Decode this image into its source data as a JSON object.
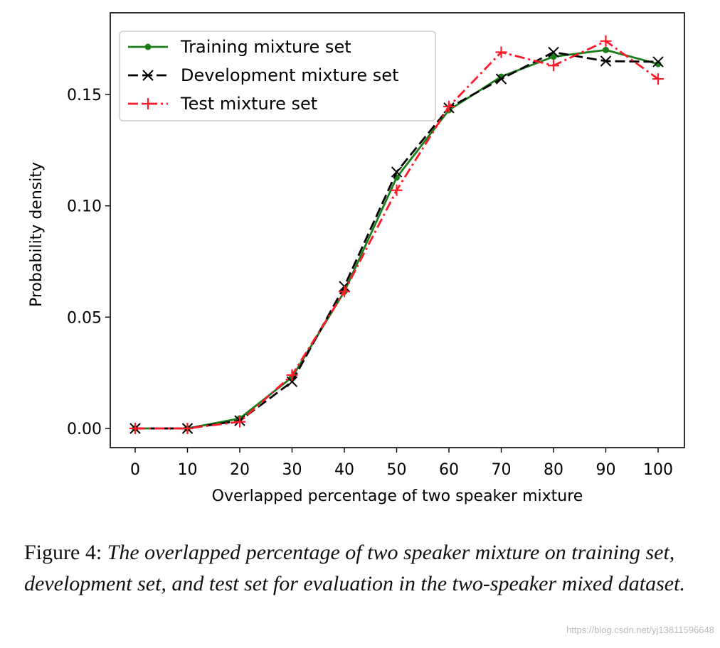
{
  "chart_data": {
    "type": "line",
    "xlabel": "Overlapped percentage of two speaker mixture",
    "ylabel": "Probability density",
    "x": [
      0,
      10,
      20,
      30,
      40,
      50,
      60,
      70,
      80,
      90,
      100
    ],
    "xticks": [
      "0",
      "10",
      "20",
      "30",
      "40",
      "50",
      "60",
      "70",
      "80",
      "90",
      "100"
    ],
    "yticks": [
      "0.00",
      "0.05",
      "0.10",
      "0.15"
    ],
    "ytick_values": [
      0,
      0.05,
      0.1,
      0.15
    ],
    "xlim": [
      -5,
      105
    ],
    "ylim": [
      -0.009,
      0.184
    ],
    "legend_position": "top-left",
    "series": [
      {
        "name": "Training mixture set",
        "color": "#1a7f1a",
        "style": "solid",
        "marker": "dot",
        "values": [
          0,
          0,
          0.0045,
          0.023,
          0.0615,
          0.1127,
          0.143,
          0.158,
          0.167,
          0.17,
          0.1637
        ]
      },
      {
        "name": "Development mixture set",
        "color": "#000000",
        "style": "dashed",
        "marker": "x",
        "values": [
          0,
          0,
          0.0035,
          0.021,
          0.0638,
          0.1152,
          0.144,
          0.157,
          0.169,
          0.165,
          0.1647
        ]
      },
      {
        "name": "Test mixture set",
        "color": "#ff1a2a",
        "style": "dashdot",
        "marker": "plus",
        "values": [
          0,
          0,
          0.003,
          0.024,
          0.0615,
          0.107,
          0.1446,
          0.169,
          0.163,
          0.174,
          0.157
        ]
      }
    ]
  },
  "caption": {
    "label": "Figure 4:",
    "text": "The overlapped percentage of two speaker mixture on training set, development set, and test set for evaluation in the two-speaker mixed dataset."
  },
  "watermark": "https://blog.csdn.net/yj13811596648"
}
